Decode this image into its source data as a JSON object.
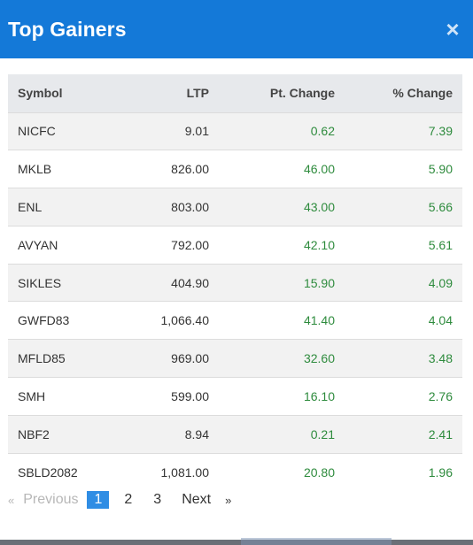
{
  "modal": {
    "title": "Top Gainers",
    "close_glyph": "×"
  },
  "table": {
    "headers": {
      "symbol": "Symbol",
      "ltp": "LTP",
      "pt_change": "Pt. Change",
      "pct_change": "% Change"
    },
    "rows": [
      {
        "symbol": "NICFC",
        "ltp": "9.01",
        "pt_change": "0.62",
        "pct_change": "7.39"
      },
      {
        "symbol": "MKLB",
        "ltp": "826.00",
        "pt_change": "46.00",
        "pct_change": "5.90"
      },
      {
        "symbol": "ENL",
        "ltp": "803.00",
        "pt_change": "43.00",
        "pct_change": "5.66"
      },
      {
        "symbol": "AVYAN",
        "ltp": "792.00",
        "pt_change": "42.10",
        "pct_change": "5.61"
      },
      {
        "symbol": "SIKLES",
        "ltp": "404.90",
        "pt_change": "15.90",
        "pct_change": "4.09"
      },
      {
        "symbol": "GWFD83",
        "ltp": "1,066.40",
        "pt_change": "41.40",
        "pct_change": "4.04"
      },
      {
        "symbol": "MFLD85",
        "ltp": "969.00",
        "pt_change": "32.60",
        "pct_change": "3.48"
      },
      {
        "symbol": "SMH",
        "ltp": "599.00",
        "pt_change": "16.10",
        "pct_change": "2.76"
      },
      {
        "symbol": "NBF2",
        "ltp": "8.94",
        "pt_change": "0.21",
        "pct_change": "2.41"
      },
      {
        "symbol": "SBLD2082",
        "ltp": "1,081.00",
        "pt_change": "20.80",
        "pct_change": "1.96"
      }
    ]
  },
  "pagination": {
    "prev_chevron": "«",
    "previous_label": "Previous",
    "pages": [
      "1",
      "2",
      "3"
    ],
    "active_page": "1",
    "next_label": "Next",
    "next_chevron": "»"
  },
  "colors": {
    "header_bg": "#1479d8",
    "positive": "#2e8b3d",
    "active_page_bg": "#2f8de4"
  }
}
